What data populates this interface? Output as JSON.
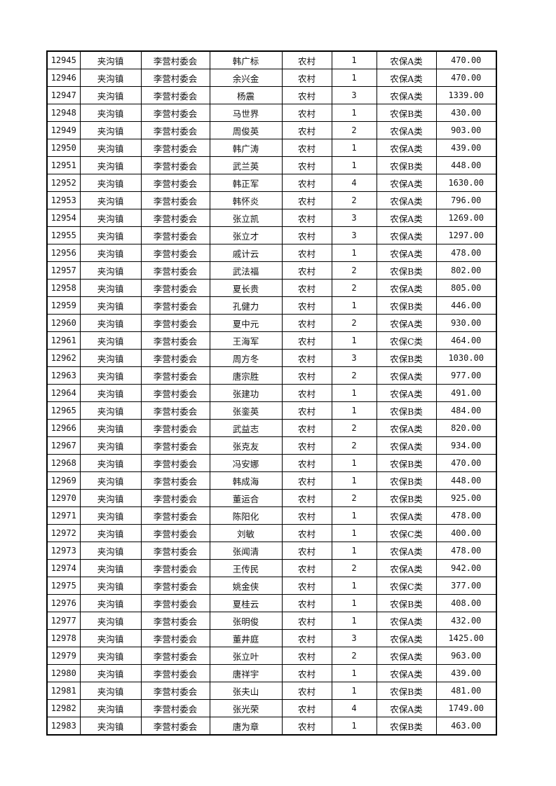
{
  "table": {
    "rows": [
      [
        "12945",
        "夹沟镇",
        "李营村委会",
        "韩广标",
        "农村",
        "1",
        "农保A类",
        "470.00"
      ],
      [
        "12946",
        "夹沟镇",
        "李营村委会",
        "余兴金",
        "农村",
        "1",
        "农保A类",
        "470.00"
      ],
      [
        "12947",
        "夹沟镇",
        "李营村委会",
        "杨震",
        "农村",
        "3",
        "农保A类",
        "1339.00"
      ],
      [
        "12948",
        "夹沟镇",
        "李营村委会",
        "马世界",
        "农村",
        "1",
        "农保B类",
        "430.00"
      ],
      [
        "12949",
        "夹沟镇",
        "李营村委会",
        "周俊英",
        "农村",
        "2",
        "农保A类",
        "903.00"
      ],
      [
        "12950",
        "夹沟镇",
        "李营村委会",
        "韩广涛",
        "农村",
        "1",
        "农保A类",
        "439.00"
      ],
      [
        "12951",
        "夹沟镇",
        "李营村委会",
        "武兰英",
        "农村",
        "1",
        "农保B类",
        "448.00"
      ],
      [
        "12952",
        "夹沟镇",
        "李营村委会",
        "韩正军",
        "农村",
        "4",
        "农保A类",
        "1630.00"
      ],
      [
        "12953",
        "夹沟镇",
        "李营村委会",
        "韩怀炎",
        "农村",
        "2",
        "农保A类",
        "796.00"
      ],
      [
        "12954",
        "夹沟镇",
        "李营村委会",
        "张立凯",
        "农村",
        "3",
        "农保A类",
        "1269.00"
      ],
      [
        "12955",
        "夹沟镇",
        "李营村委会",
        "张立才",
        "农村",
        "3",
        "农保A类",
        "1297.00"
      ],
      [
        "12956",
        "夹沟镇",
        "李营村委会",
        "戚计云",
        "农村",
        "1",
        "农保A类",
        "478.00"
      ],
      [
        "12957",
        "夹沟镇",
        "李营村委会",
        "武法福",
        "农村",
        "2",
        "农保B类",
        "802.00"
      ],
      [
        "12958",
        "夹沟镇",
        "李营村委会",
        "夏长贵",
        "农村",
        "2",
        "农保A类",
        "805.00"
      ],
      [
        "12959",
        "夹沟镇",
        "李营村委会",
        "孔健力",
        "农村",
        "1",
        "农保B类",
        "446.00"
      ],
      [
        "12960",
        "夹沟镇",
        "李营村委会",
        "夏中元",
        "农村",
        "2",
        "农保A类",
        "930.00"
      ],
      [
        "12961",
        "夹沟镇",
        "李营村委会",
        "王海军",
        "农村",
        "1",
        "农保C类",
        "464.00"
      ],
      [
        "12962",
        "夹沟镇",
        "李营村委会",
        "周方冬",
        "农村",
        "3",
        "农保B类",
        "1030.00"
      ],
      [
        "12963",
        "夹沟镇",
        "李营村委会",
        "唐宗胜",
        "农村",
        "2",
        "农保A类",
        "977.00"
      ],
      [
        "12964",
        "夹沟镇",
        "李营村委会",
        "张建功",
        "农村",
        "1",
        "农保A类",
        "491.00"
      ],
      [
        "12965",
        "夹沟镇",
        "李营村委会",
        "张銮英",
        "农村",
        "1",
        "农保B类",
        "484.00"
      ],
      [
        "12966",
        "夹沟镇",
        "李营村委会",
        "武益志",
        "农村",
        "2",
        "农保A类",
        "820.00"
      ],
      [
        "12967",
        "夹沟镇",
        "李营村委会",
        "张克友",
        "农村",
        "2",
        "农保A类",
        "934.00"
      ],
      [
        "12968",
        "夹沟镇",
        "李营村委会",
        "冯安娜",
        "农村",
        "1",
        "农保B类",
        "470.00"
      ],
      [
        "12969",
        "夹沟镇",
        "李营村委会",
        "韩成海",
        "农村",
        "1",
        "农保B类",
        "448.00"
      ],
      [
        "12970",
        "夹沟镇",
        "李营村委会",
        "董运合",
        "农村",
        "2",
        "农保B类",
        "925.00"
      ],
      [
        "12971",
        "夹沟镇",
        "李营村委会",
        "陈阳化",
        "农村",
        "1",
        "农保A类",
        "478.00"
      ],
      [
        "12972",
        "夹沟镇",
        "李营村委会",
        "刘敏",
        "农村",
        "1",
        "农保C类",
        "400.00"
      ],
      [
        "12973",
        "夹沟镇",
        "李营村委会",
        "张闻清",
        "农村",
        "1",
        "农保A类",
        "478.00"
      ],
      [
        "12974",
        "夹沟镇",
        "李营村委会",
        "王传民",
        "农村",
        "2",
        "农保A类",
        "942.00"
      ],
      [
        "12975",
        "夹沟镇",
        "李营村委会",
        "姚金侠",
        "农村",
        "1",
        "农保C类",
        "377.00"
      ],
      [
        "12976",
        "夹沟镇",
        "李营村委会",
        "夏桂云",
        "农村",
        "1",
        "农保B类",
        "408.00"
      ],
      [
        "12977",
        "夹沟镇",
        "李营村委会",
        "张明俊",
        "农村",
        "1",
        "农保A类",
        "432.00"
      ],
      [
        "12978",
        "夹沟镇",
        "李营村委会",
        "董井庭",
        "农村",
        "3",
        "农保A类",
        "1425.00"
      ],
      [
        "12979",
        "夹沟镇",
        "李营村委会",
        "张立叶",
        "农村",
        "2",
        "农保A类",
        "963.00"
      ],
      [
        "12980",
        "夹沟镇",
        "李营村委会",
        "唐祥宇",
        "农村",
        "1",
        "农保A类",
        "439.00"
      ],
      [
        "12981",
        "夹沟镇",
        "李营村委会",
        "张夫山",
        "农村",
        "1",
        "农保B类",
        "481.00"
      ],
      [
        "12982",
        "夹沟镇",
        "李营村委会",
        "张光荣",
        "农村",
        "4",
        "农保A类",
        "1749.00"
      ],
      [
        "12983",
        "夹沟镇",
        "李营村委会",
        "唐为章",
        "农村",
        "1",
        "农保B类",
        "463.00"
      ]
    ]
  }
}
